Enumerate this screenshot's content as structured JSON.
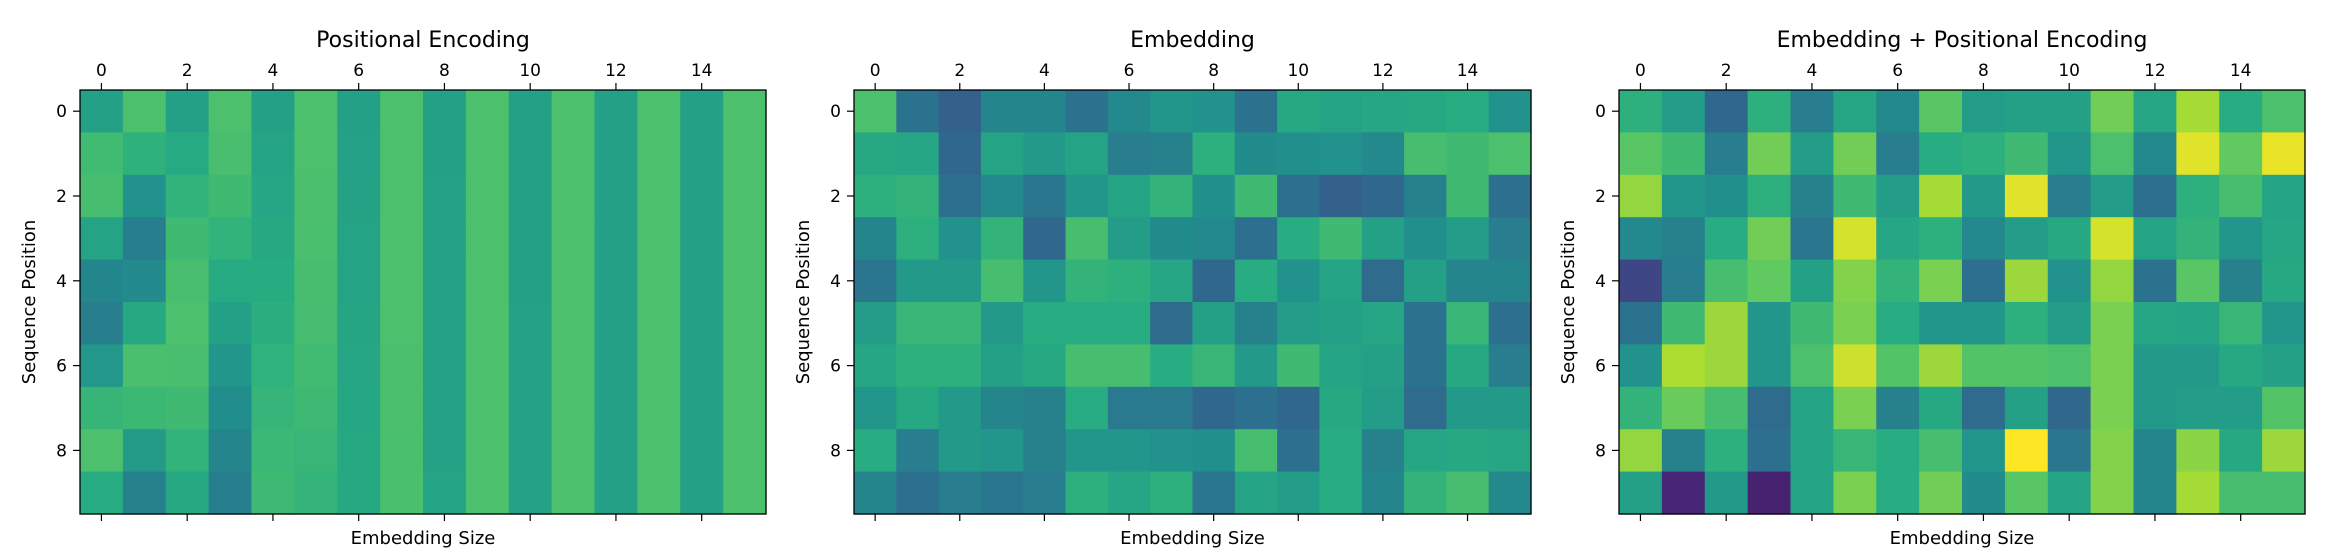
{
  "chart_data": [
    {
      "type": "heatmap",
      "title": "Positional Encoding",
      "xlabel": "Embedding Size",
      "ylabel": "Sequence Position",
      "x_ticks": [
        "0",
        "2",
        "4",
        "6",
        "8",
        "10",
        "12",
        "14"
      ],
      "y_ticks": [
        "0",
        "2",
        "4",
        "6",
        "8"
      ],
      "colormap": "viridis",
      "vmin": -4,
      "vmax": 3,
      "values": [
        [
          0.0,
          1.0,
          0.0,
          1.0,
          0.0,
          1.0,
          0.0,
          1.0,
          0.0,
          1.0,
          0.0,
          1.0,
          0.0,
          1.0,
          0.0,
          1.0
        ],
        [
          0.84,
          0.54,
          0.31,
          0.95,
          0.1,
          1.0,
          0.03,
          1.0,
          0.01,
          1.0,
          0.0,
          1.0,
          0.0,
          1.0,
          0.0,
          1.0
        ],
        [
          0.91,
          -0.42,
          0.59,
          0.81,
          0.2,
          0.98,
          0.06,
          1.0,
          0.02,
          1.0,
          0.01,
          1.0,
          0.0,
          1.0,
          0.0,
          1.0
        ],
        [
          0.14,
          -0.99,
          0.81,
          0.59,
          0.3,
          0.96,
          0.09,
          1.0,
          0.03,
          1.0,
          0.01,
          1.0,
          0.0,
          1.0,
          0.0,
          1.0
        ],
        [
          -0.76,
          -0.65,
          0.95,
          0.31,
          0.39,
          0.92,
          0.13,
          0.99,
          0.04,
          1.0,
          0.01,
          1.0,
          0.0,
          1.0,
          0.0,
          1.0
        ],
        [
          -0.96,
          0.28,
          1.0,
          -0.01,
          0.48,
          0.88,
          0.16,
          0.99,
          0.05,
          1.0,
          0.02,
          1.0,
          0.01,
          1.0,
          0.0,
          1.0
        ],
        [
          -0.28,
          0.96,
          0.95,
          -0.32,
          0.56,
          0.83,
          0.19,
          0.98,
          0.06,
          1.0,
          0.02,
          1.0,
          0.01,
          1.0,
          0.0,
          1.0
        ],
        [
          0.66,
          0.75,
          0.81,
          -0.59,
          0.64,
          0.77,
          0.22,
          0.98,
          0.07,
          1.0,
          0.02,
          1.0,
          0.01,
          1.0,
          0.0,
          1.0
        ],
        [
          0.99,
          -0.15,
          0.59,
          -0.81,
          0.72,
          0.7,
          0.25,
          0.97,
          0.08,
          1.0,
          0.03,
          1.0,
          0.01,
          1.0,
          0.0,
          1.0
        ],
        [
          0.41,
          -0.91,
          0.3,
          -0.95,
          0.78,
          0.62,
          0.28,
          0.96,
          0.09,
          1.0,
          0.03,
          1.0,
          0.01,
          1.0,
          0.0,
          1.0
        ]
      ]
    },
    {
      "type": "heatmap",
      "title": "Embedding",
      "xlabel": "Embedding Size",
      "ylabel": "Sequence Position",
      "x_ticks": [
        "0",
        "2",
        "4",
        "6",
        "8",
        "10",
        "12",
        "14"
      ],
      "y_ticks": [
        "0",
        "2",
        "4",
        "6",
        "8"
      ],
      "colormap": "viridis",
      "vmin": -4,
      "vmax": 3,
      "values": [
        [
          1.0,
          -1.3,
          -1.8,
          -0.8,
          -0.8,
          -1.3,
          -0.7,
          -0.3,
          -0.4,
          -1.3,
          0.3,
          0.1,
          0.2,
          0.3,
          0.4,
          -0.4
        ],
        [
          0.3,
          0.2,
          -1.6,
          0.1,
          -0.2,
          0.1,
          -1.0,
          -0.9,
          0.5,
          -0.6,
          -0.5,
          -0.4,
          -0.7,
          0.9,
          0.8,
          1.0
        ],
        [
          0.5,
          0.6,
          -1.4,
          -0.7,
          -1.2,
          -0.3,
          0.1,
          0.6,
          -0.5,
          0.8,
          -1.4,
          -1.8,
          -1.6,
          -0.9,
          0.8,
          -1.4
        ],
        [
          -0.8,
          0.5,
          -0.4,
          0.6,
          -1.6,
          0.9,
          -0.1,
          -0.6,
          -0.7,
          -1.4,
          0.4,
          0.8,
          0.0,
          -0.5,
          -0.1,
          -1.0
        ],
        [
          -1.2,
          -0.2,
          -0.2,
          0.9,
          -0.3,
          0.6,
          0.5,
          0.2,
          -1.6,
          0.4,
          -0.4,
          0.1,
          -1.5,
          0.0,
          -0.8,
          -0.8
        ],
        [
          -0.1,
          0.7,
          0.7,
          -0.2,
          0.4,
          0.4,
          0.4,
          -1.5,
          0.0,
          -0.9,
          -0.1,
          0.0,
          0.2,
          -1.3,
          0.7,
          -1.4
        ],
        [
          0.2,
          0.5,
          0.5,
          0.0,
          0.3,
          0.9,
          0.9,
          0.4,
          0.7,
          -0.2,
          0.8,
          0.1,
          0.0,
          -1.3,
          0.3,
          -1.0
        ],
        [
          -0.3,
          0.3,
          -0.2,
          -0.8,
          -0.9,
          0.4,
          -1.1,
          -1.1,
          -1.6,
          -1.4,
          -1.6,
          0.3,
          -0.1,
          -1.5,
          -0.2,
          -0.2
        ],
        [
          0.4,
          -1.0,
          -0.2,
          -0.3,
          -0.9,
          -0.3,
          -0.3,
          -0.4,
          -0.5,
          0.9,
          -1.4,
          0.4,
          -0.9,
          0.2,
          0.3,
          0.2
        ],
        [
          -0.8,
          -1.4,
          -1.0,
          -1.2,
          -1.0,
          0.5,
          0.2,
          0.5,
          -1.2,
          0.1,
          -0.1,
          0.4,
          -0.8,
          0.6,
          0.9,
          -0.7
        ]
      ]
    },
    {
      "type": "heatmap",
      "title": "Embedding + Positional Encoding",
      "xlabel": "Embedding Size",
      "ylabel": "Sequence Position",
      "x_ticks": [
        "0",
        "2",
        "4",
        "6",
        "8",
        "10",
        "12",
        "14"
      ],
      "y_ticks": [
        "0",
        "2",
        "4",
        "6",
        "8"
      ],
      "colormap": "viridis",
      "vmin": -4,
      "vmax": 3,
      "values": [
        [
          0.5,
          -0.1,
          -1.6,
          0.5,
          -1.0,
          0.2,
          -0.7,
          1.2,
          -0.1,
          0.0,
          0.0,
          1.5,
          0.2,
          2.1,
          0.4,
          1.0
        ],
        [
          1.2,
          0.8,
          -1.0,
          1.5,
          -0.1,
          1.5,
          -1.0,
          0.4,
          0.5,
          0.8,
          -0.3,
          1.0,
          -0.7,
          2.7,
          1.3,
          2.8
        ],
        [
          1.9,
          -0.3,
          -0.5,
          0.5,
          -0.9,
          0.8,
          -0.1,
          2.1,
          -0.2,
          2.7,
          -1.0,
          -0.1,
          -1.4,
          0.5,
          0.9,
          0.1
        ],
        [
          -0.7,
          -0.9,
          0.4,
          1.5,
          -1.2,
          2.6,
          0.2,
          0.5,
          -0.7,
          -0.1,
          0.3,
          2.6,
          0.1,
          0.6,
          -0.3,
          0.2
        ],
        [
          -2.5,
          -1.0,
          0.9,
          1.3,
          0.0,
          1.7,
          0.6,
          1.6,
          -1.4,
          2.0,
          -0.4,
          1.9,
          -1.3,
          1.2,
          -0.9,
          0.3
        ],
        [
          -1.3,
          0.8,
          2.0,
          -0.3,
          0.8,
          1.6,
          0.4,
          -0.3,
          -0.3,
          0.5,
          -0.1,
          1.6,
          0.2,
          0.1,
          0.7,
          -0.3
        ],
        [
          -0.4,
          2.2,
          2.0,
          -0.3,
          1.0,
          2.5,
          1.1,
          2.0,
          1.1,
          1.1,
          1.0,
          1.6,
          -0.2,
          -0.2,
          0.3,
          0.0
        ],
        [
          0.6,
          1.4,
          0.9,
          -1.5,
          0.1,
          1.6,
          -0.9,
          0.3,
          -1.5,
          0.0,
          -1.6,
          1.6,
          -0.2,
          -0.1,
          -0.1,
          1.1
        ],
        [
          1.9,
          -0.9,
          0.5,
          -1.4,
          0.1,
          0.7,
          0.4,
          0.9,
          -0.3,
          3.0,
          -1.2,
          1.7,
          -0.8,
          1.8,
          0.3,
          2.0
        ],
        [
          0.0,
          -3.2,
          -0.2,
          -3.3,
          0.1,
          1.6,
          0.4,
          1.5,
          -0.6,
          1.2,
          0.1,
          1.7,
          -0.8,
          2.1,
          0.9,
          0.9
        ]
      ]
    }
  ]
}
